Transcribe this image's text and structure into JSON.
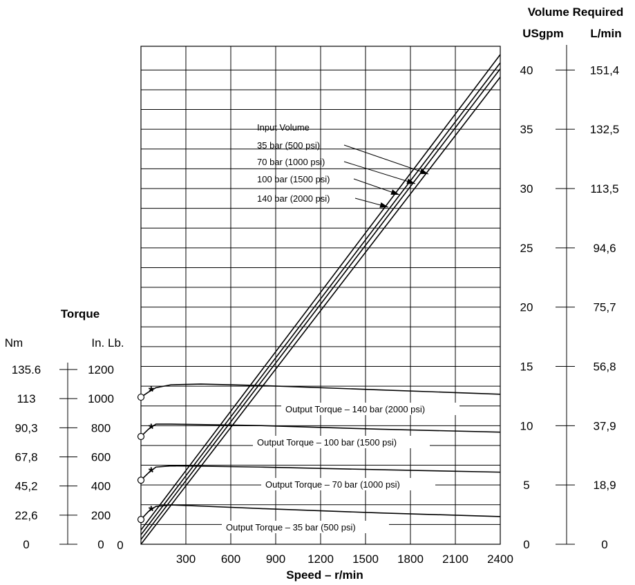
{
  "chart_data": {
    "type": "line",
    "xlabel": "Speed – r/min",
    "x_ticks": [
      "0",
      "300",
      "600",
      "900",
      "1200",
      "1500",
      "1800",
      "2100",
      "2400"
    ],
    "xlim": [
      0,
      2400
    ],
    "grid": true,
    "right_axis": {
      "title": "Volume Required",
      "unit_labels": [
        "USgpm",
        "L/min"
      ],
      "usgpm_ticks": [
        "0",
        "5",
        "10",
        "15",
        "20",
        "25",
        "30",
        "35",
        "40"
      ],
      "lmin_ticks": [
        "0",
        "18,9",
        "37,9",
        "56,8",
        "75,7",
        "94,6",
        "113,5",
        "132,5",
        "151,4"
      ],
      "range_usgpm": [
        0,
        42
      ]
    },
    "left_axis": {
      "title": "Torque",
      "unit_labels": [
        "Nm",
        "In. Lb."
      ],
      "nm_ticks": [
        "0",
        "22,6",
        "45,2",
        "67,8",
        "90,3",
        "113",
        "135.6"
      ],
      "inlb_ticks": [
        "0",
        "200",
        "400",
        "600",
        "800",
        "1000",
        "1200"
      ],
      "range_inlb": [
        0,
        1200
      ]
    },
    "volume_title": "Input  Volume",
    "volume_series": [
      {
        "name": "35 bar (500 psi)",
        "x": [
          0,
          2400
        ],
        "y": [
          1.2,
          41.3
        ]
      },
      {
        "name": "70 bar (1000 psi)",
        "x": [
          0,
          2400
        ],
        "y": [
          0.8,
          40.6
        ]
      },
      {
        "name": "100 bar (1500 psi)",
        "x": [
          0,
          2400
        ],
        "y": [
          0.4,
          40.1
        ]
      },
      {
        "name": "140 bar (2000 psi)",
        "x": [
          0,
          2400
        ],
        "y": [
          0.0,
          39.4
        ]
      }
    ],
    "torque_series": [
      {
        "name": "Output Torque – 140 bar (2000 psi)",
        "x": [
          0,
          50,
          100,
          200,
          400,
          800,
          1600,
          2400
        ],
        "y": [
          1010,
          1045,
          1075,
          1095,
          1100,
          1090,
          1060,
          1030
        ]
      },
      {
        "name": "Output Torque – 100 bar (1500 psi)",
        "x": [
          0,
          50,
          100,
          200,
          400,
          800,
          1600,
          2400
        ],
        "y": [
          740,
          790,
          825,
          825,
          822,
          815,
          790,
          770
        ]
      },
      {
        "name": "Output Torque – 70 bar (1000 psi)",
        "x": [
          0,
          50,
          100,
          200,
          400,
          800,
          1600,
          2400
        ],
        "y": [
          440,
          490,
          530,
          538,
          536,
          530,
          512,
          495
        ]
      },
      {
        "name": "Output Torque – 35 bar (500 psi)",
        "x": [
          0,
          50,
          100,
          200,
          400,
          800,
          1600,
          2400
        ],
        "y": [
          170,
          225,
          260,
          270,
          262,
          245,
          215,
          190
        ]
      }
    ]
  }
}
